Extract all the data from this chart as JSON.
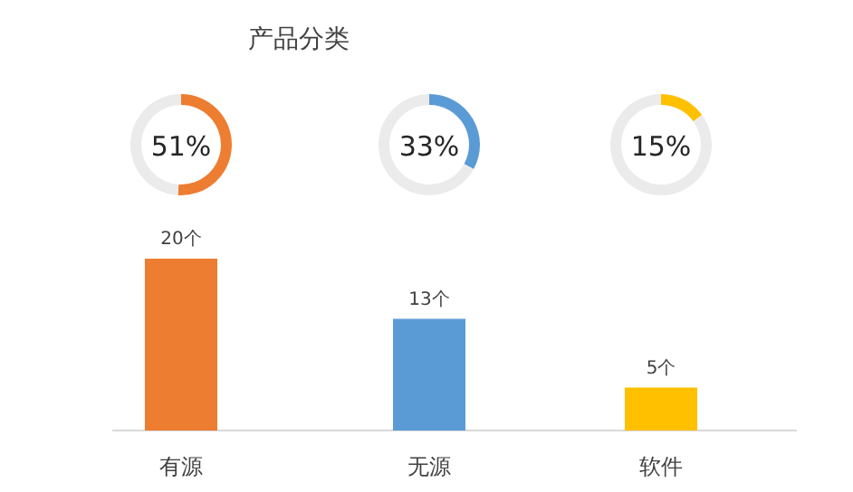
{
  "chart_data": [
    {
      "type": "bar",
      "title": "产品分类",
      "categories": [
        "有源",
        "无源",
        "软件"
      ],
      "values": [
        20,
        13,
        5
      ],
      "colors": [
        "#ed7d31",
        "#5b9bd5",
        "#ffc000"
      ],
      "value_labels": [
        "20个",
        "13个",
        "5个"
      ]
    },
    {
      "type": "donut",
      "categories": [
        null,
        null
      ],
      "values": [
        51,
        49
      ],
      "colors": [
        "#ed7d31",
        "#ebebeb"
      ],
      "annotations": [
        "51%"
      ]
    },
    {
      "type": "donut",
      "categories": [
        null,
        null
      ],
      "values": [
        33,
        67
      ],
      "colors": [
        "#5b9bd5",
        "#ebebeb"
      ],
      "annotations": [
        "33%"
      ]
    },
    {
      "type": "donut",
      "categories": [
        null,
        null
      ],
      "values": [
        15,
        85
      ],
      "colors": [
        "#ffc000",
        "#ebebeb"
      ],
      "annotations": [
        "15%"
      ]
    }
  ]
}
